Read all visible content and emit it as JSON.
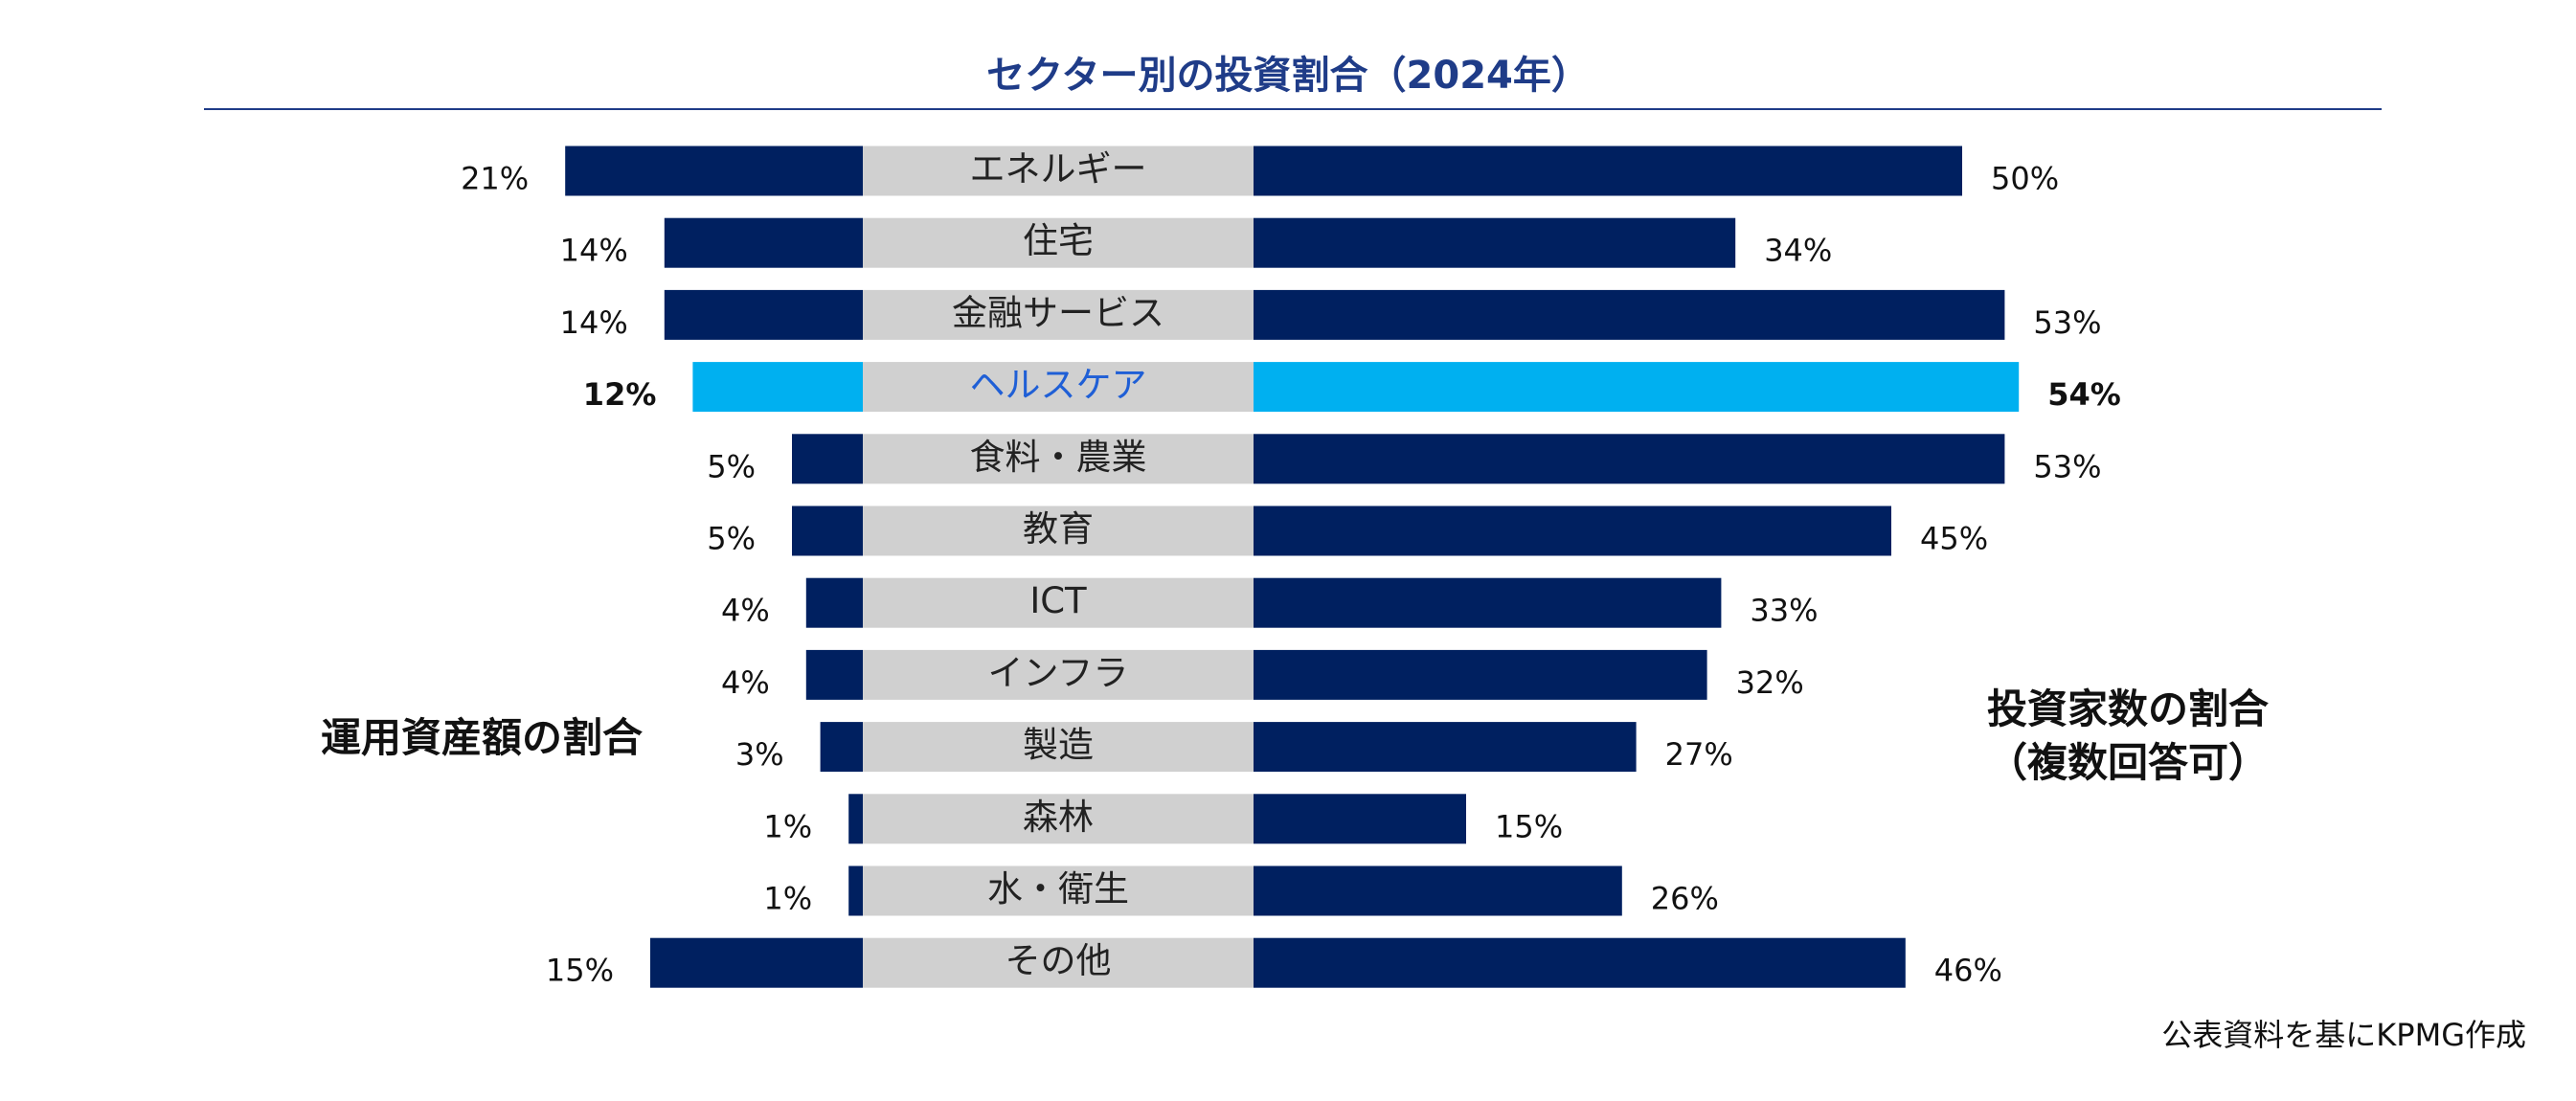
{
  "chart_data": {
    "type": "butterfly",
    "title": "セクター別の投資割合（2024年）",
    "categories": [
      "エネルギー",
      "住宅",
      "金融サービス",
      "ヘルスケア",
      "食料・農業",
      "教育",
      "ICT",
      "インフラ",
      "製造",
      "森林",
      "水・衛生",
      "その他"
    ],
    "category_colors": [
      "#222222",
      "#222222",
      "#222222",
      "#1f5fd6",
      "#222222",
      "#222222",
      "#222222",
      "#222222",
      "#222222",
      "#222222",
      "#222222",
      "#222222"
    ],
    "series": [
      {
        "name": "運用資産額の割合",
        "side": "left",
        "values": [
          21,
          14,
          14,
          12,
          5,
          5,
          4,
          4,
          3,
          1,
          1,
          15
        ],
        "value_labels": [
          "21%",
          "14%",
          "14%",
          "12%",
          "5%",
          "5%",
          "4%",
          "4%",
          "3%",
          "1%",
          "1%",
          "15%"
        ],
        "colors": [
          "#002060",
          "#002060",
          "#002060",
          "#00b0f0",
          "#002060",
          "#002060",
          "#002060",
          "#002060",
          "#002060",
          "#002060",
          "#002060",
          "#002060"
        ]
      },
      {
        "name": "投資家数の割合（複数回答可）",
        "side": "right",
        "values": [
          50,
          34,
          53,
          54,
          53,
          45,
          33,
          32,
          27,
          15,
          26,
          46
        ],
        "value_labels": [
          "50%",
          "34%",
          "53%",
          "54%",
          "53%",
          "45%",
          "33%",
          "32%",
          "27%",
          "15%",
          "26%",
          "46%"
        ],
        "colors": [
          "#002060",
          "#002060",
          "#002060",
          "#00b0f0",
          "#002060",
          "#002060",
          "#002060",
          "#002060",
          "#002060",
          "#002060",
          "#002060",
          "#002060"
        ]
      }
    ],
    "source": "公表資料を基にKPMG作成"
  }
}
